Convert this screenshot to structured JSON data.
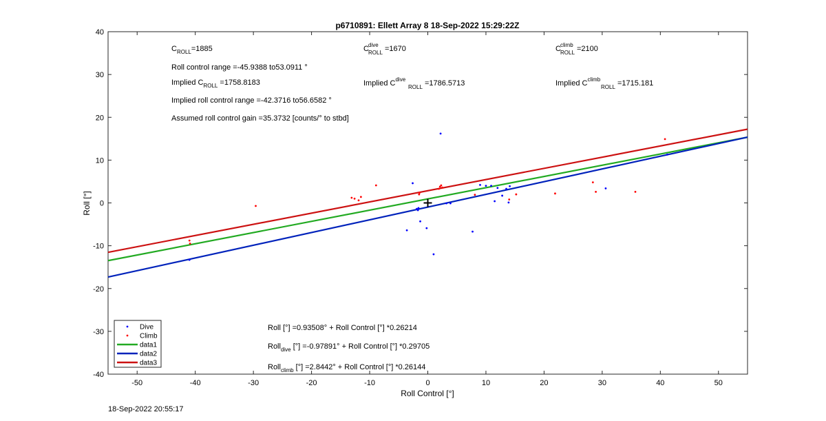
{
  "chart_data": {
    "type": "scatter",
    "title": "p6710891: Ellett Array 8 18-Sep-2022 15:29:22Z",
    "xlabel": "Roll Control [°]",
    "ylabel": "Roll [°]",
    "xlim": [
      -55,
      55
    ],
    "ylim": [
      -40,
      40
    ],
    "xticks": [
      -50,
      -40,
      -30,
      -20,
      -10,
      0,
      10,
      20,
      30,
      40,
      50
    ],
    "yticks": [
      -40,
      -30,
      -20,
      -10,
      0,
      10,
      20,
      30,
      40
    ],
    "grid": false,
    "legend_position": "bottom-left",
    "colors": {
      "dive": "#0000ff",
      "climb": "#ff0000",
      "data1": "#22aa22",
      "data2": "#0022bb",
      "data3": "#cc1111"
    },
    "series": [
      {
        "name": "Dive",
        "kind": "points",
        "points": [
          [
            -41,
            -13.3
          ],
          [
            -3.6,
            -6.4
          ],
          [
            -2.6,
            4.6
          ],
          [
            -1.9,
            -1.4
          ],
          [
            -1.7,
            -1.7
          ],
          [
            -1.6,
            -1.2
          ],
          [
            -1.3,
            -4.3
          ],
          [
            -0.2,
            -5.9
          ],
          [
            1,
            -12
          ],
          [
            2.2,
            16.2
          ],
          [
            3.2,
            -0.1
          ],
          [
            3.9,
            -0.1
          ],
          [
            7.7,
            -6.7
          ],
          [
            9,
            4.2
          ],
          [
            10,
            4
          ],
          [
            10.9,
            4
          ],
          [
            11.5,
            0.4
          ],
          [
            12,
            3.5
          ],
          [
            12.8,
            1.7
          ],
          [
            13.5,
            3.3
          ],
          [
            13.9,
            0.1
          ],
          [
            14.1,
            3.9
          ],
          [
            30.6,
            3.4
          ],
          [
            41.2,
            11.3
          ]
        ]
      },
      {
        "name": "Climb",
        "kind": "points",
        "points": [
          [
            -41,
            -8.8
          ],
          [
            -40.9,
            -9.5
          ],
          [
            -29.6,
            -0.7
          ],
          [
            -13.1,
            1.2
          ],
          [
            -12.6,
            1
          ],
          [
            -11.9,
            0.6
          ],
          [
            -11.5,
            1.4
          ],
          [
            -8.9,
            4.1
          ],
          [
            -1.5,
            2
          ],
          [
            -1.4,
            2.4
          ],
          [
            1.9,
            3.3
          ],
          [
            2.1,
            3.8
          ],
          [
            2.3,
            4.1
          ],
          [
            2.5,
            3.6
          ],
          [
            8.1,
            1.9
          ],
          [
            14,
            0.8
          ],
          [
            15.2,
            2
          ],
          [
            21.9,
            2.2
          ],
          [
            28.4,
            4.8
          ],
          [
            28.9,
            2.6
          ],
          [
            35.7,
            2.6
          ],
          [
            40.8,
            14.9
          ]
        ]
      },
      {
        "name": "data1",
        "kind": "line",
        "intercept": 0.93508,
        "slope": 0.26214
      },
      {
        "name": "data2",
        "kind": "line",
        "intercept": -0.97891,
        "slope": 0.29705
      },
      {
        "name": "data3",
        "kind": "line",
        "intercept": 2.8442,
        "slope": 0.26144
      }
    ],
    "center_marker": [
      0,
      0
    ],
    "annotations": {
      "croll": {
        "c": "C",
        "sub": "ROLL",
        "val": "=1885"
      },
      "roll_range": "Roll control range =-45.9388 to53.0911 °",
      "implied": {
        "pre": "Implied C",
        "sub": "ROLL",
        "val": " =1758.8183"
      },
      "implied_range": "Implied roll control range =-42.3716 to56.6582 °",
      "gain": "Assumed roll control gain =35.3732 [counts/° to stbd]",
      "cdive": {
        "c": "C",
        "sup": "dive",
        "sub": "ROLL",
        "val": " =1670"
      },
      "implied_dive": {
        "pre": "Implied C",
        "sup": "dive",
        "sub": "ROLL",
        "val": " =1786.5713"
      },
      "cclimb": {
        "c": "C",
        "sup": "climb",
        "sub": "ROLL",
        "val": " =2100"
      },
      "implied_climb": {
        "pre": "Implied C",
        "sup": "climb",
        "sub": "ROLL",
        "val": " =1715.181"
      },
      "fit": "Roll [°] =0.93508° + Roll Control [°] *0.26214",
      "fit_dive": {
        "pre": "Roll",
        "sub": "dive",
        "rest": " [°] =-0.97891° + Roll Control [°] *0.29705"
      },
      "fit_climb": {
        "pre": "Roll",
        "sub": "climb",
        "rest": " [°] =2.8442° + Roll Control [°] *0.26144"
      }
    }
  },
  "footer_timestamp": "18-Sep-2022 20:55:17"
}
